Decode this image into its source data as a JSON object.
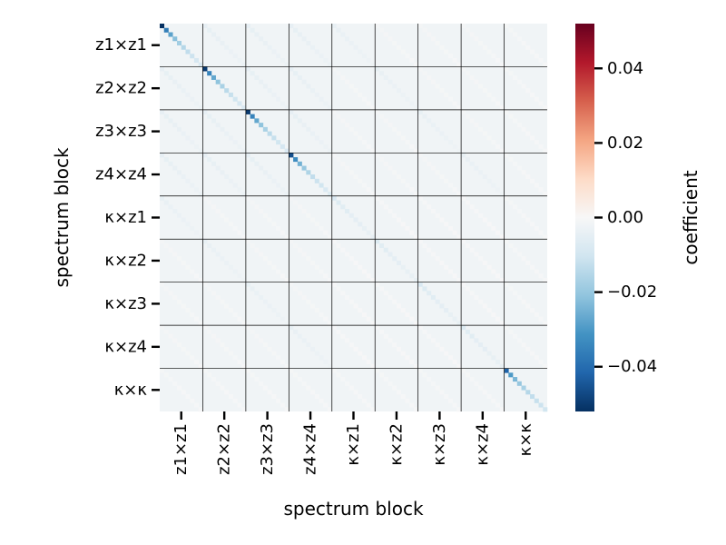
{
  "chart_data": {
    "type": "heatmap",
    "title": "",
    "xlabel": "spectrum block",
    "ylabel": "spectrum block",
    "blocks": [
      "z1×z1",
      "z2×z2",
      "z3×z3",
      "z4×z4",
      "κ×z1",
      "κ×z2",
      "κ×z3",
      "κ×z4",
      "κ×κ"
    ],
    "bins_per_block": 10,
    "block_grid": true,
    "colormap": "RdBu_r",
    "background_value": -0.002,
    "colorbar": {
      "label": "coefficient",
      "range": [
        -0.052,
        0.052
      ],
      "ticks": [
        -0.04,
        -0.02,
        0.0,
        0.02,
        0.04
      ],
      "tick_labels": [
        "−0.04",
        "−0.02",
        "0.00",
        "0.02",
        "0.04"
      ]
    },
    "main_diagonal_by_block": [
      [
        -0.052,
        -0.036,
        -0.028,
        -0.022,
        -0.018,
        -0.015,
        -0.013,
        -0.011,
        -0.009,
        -0.008
      ],
      [
        -0.05,
        -0.035,
        -0.027,
        -0.021,
        -0.017,
        -0.014,
        -0.012,
        -0.01,
        -0.009,
        -0.008
      ],
      [
        -0.05,
        -0.035,
        -0.027,
        -0.021,
        -0.017,
        -0.014,
        -0.012,
        -0.01,
        -0.009,
        -0.008
      ],
      [
        -0.046,
        -0.033,
        -0.025,
        -0.02,
        -0.016,
        -0.013,
        -0.011,
        -0.01,
        -0.008,
        -0.007
      ],
      [
        -0.008,
        -0.007,
        -0.006,
        -0.006,
        -0.005,
        -0.005,
        -0.005,
        -0.004,
        -0.004,
        -0.004
      ],
      [
        -0.007,
        -0.006,
        -0.006,
        -0.005,
        -0.005,
        -0.005,
        -0.004,
        -0.004,
        -0.004,
        -0.004
      ],
      [
        -0.008,
        -0.007,
        -0.006,
        -0.006,
        -0.005,
        -0.005,
        -0.005,
        -0.004,
        -0.004,
        -0.004
      ],
      [
        -0.007,
        -0.006,
        -0.006,
        -0.005,
        -0.005,
        -0.005,
        -0.004,
        -0.004,
        -0.004,
        -0.004
      ],
      [
        -0.042,
        -0.03,
        -0.024,
        -0.02,
        -0.017,
        -0.015,
        -0.013,
        -0.012,
        -0.011,
        -0.01
      ]
    ],
    "off_diagonal_block_diagonals": {
      "auto_auto": -0.0045,
      "cross_cross": -0.0005,
      "auto_cross_same_bin": -0.004,
      "auto_cross_other_bin": -0.001,
      "kk_cross": -0.0008,
      "other": 0.0015
    }
  }
}
